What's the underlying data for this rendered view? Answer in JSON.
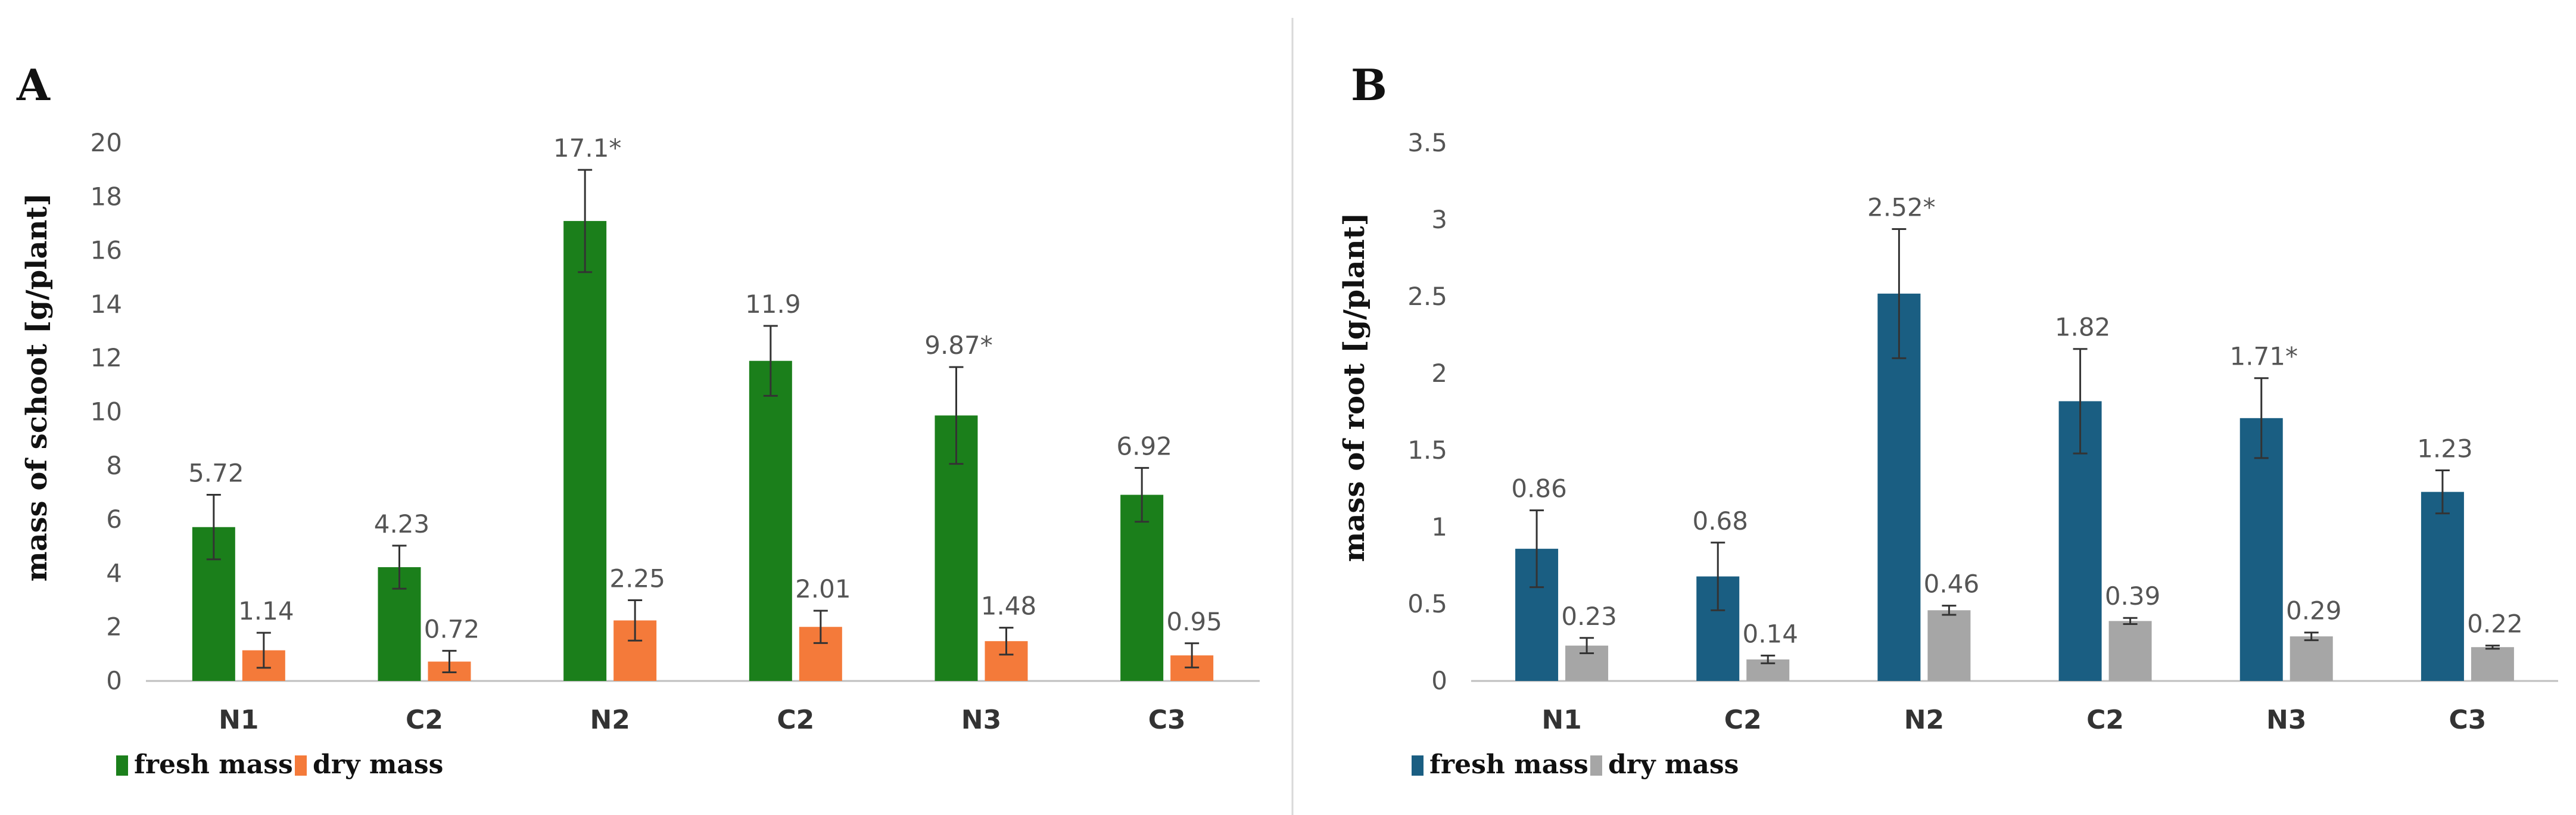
{
  "chart_data": [
    {
      "type": "bar",
      "panel": "A",
      "ylabel": "mass of schoot [g/plant]",
      "xlabel": "",
      "categories": [
        "N1",
        "C2",
        "N2",
        "C2",
        "N3",
        "C3"
      ],
      "ylim": [
        0,
        20
      ],
      "yticks": [
        "0",
        "2",
        "4",
        "6",
        "8",
        "10",
        "12",
        "14",
        "16",
        "18",
        "20"
      ],
      "ytick_values": [
        0,
        2,
        4,
        6,
        8,
        10,
        12,
        14,
        16,
        18,
        20
      ],
      "series": [
        {
          "name": "fresh mass",
          "color": "#1b7f1b",
          "values": [
            5.72,
            4.23,
            17.1,
            11.9,
            9.87,
            6.92
          ],
          "labels": [
            "5.72",
            "4.23",
            "17.1*",
            "11.9",
            "9.87*",
            "6.92"
          ],
          "errors": [
            1.2,
            0.8,
            1.9,
            1.3,
            1.8,
            1.0
          ]
        },
        {
          "name": "dry mass",
          "color": "#f47a3a",
          "values": [
            1.14,
            0.72,
            2.25,
            2.01,
            1.48,
            0.95
          ],
          "labels": [
            "1.14",
            "0.72",
            "2.25",
            "2.01",
            "1.48",
            "0.95"
          ],
          "errors": [
            0.65,
            0.4,
            0.75,
            0.6,
            0.5,
            0.45
          ]
        }
      ],
      "legend": "bottom-left",
      "grid": false
    },
    {
      "type": "bar",
      "panel": "B",
      "ylabel": "mass of root [g/plant]",
      "xlabel": "",
      "categories": [
        "N1",
        "C2",
        "N2",
        "C2",
        "N3",
        "C3"
      ],
      "ylim": [
        0,
        3.5
      ],
      "yticks": [
        "0",
        "0.5",
        "1",
        "1.5",
        "2",
        "2.5",
        "3",
        "3.5"
      ],
      "ytick_values": [
        0,
        0.5,
        1,
        1.5,
        2,
        2.5,
        3,
        3.5
      ],
      "series": [
        {
          "name": "fresh mass",
          "color": "#1a5e82",
          "values": [
            0.86,
            0.68,
            2.52,
            1.82,
            1.71,
            1.23
          ],
          "labels": [
            "0.86",
            "0.68",
            "2.52*",
            "1.82",
            "1.71*",
            "1.23"
          ],
          "errors": [
            0.25,
            0.22,
            0.42,
            0.34,
            0.26,
            0.14
          ]
        },
        {
          "name": "dry mass",
          "color": "#a6a6a6",
          "values": [
            0.23,
            0.14,
            0.46,
            0.39,
            0.29,
            0.22
          ],
          "labels": [
            "0.23",
            "0.14",
            "0.46",
            "0.39",
            "0.29",
            "0.22"
          ],
          "errors": [
            0.05,
            0.025,
            0.03,
            0.02,
            0.025,
            0.01
          ]
        }
      ],
      "legend": "bottom-left",
      "grid": false
    }
  ]
}
